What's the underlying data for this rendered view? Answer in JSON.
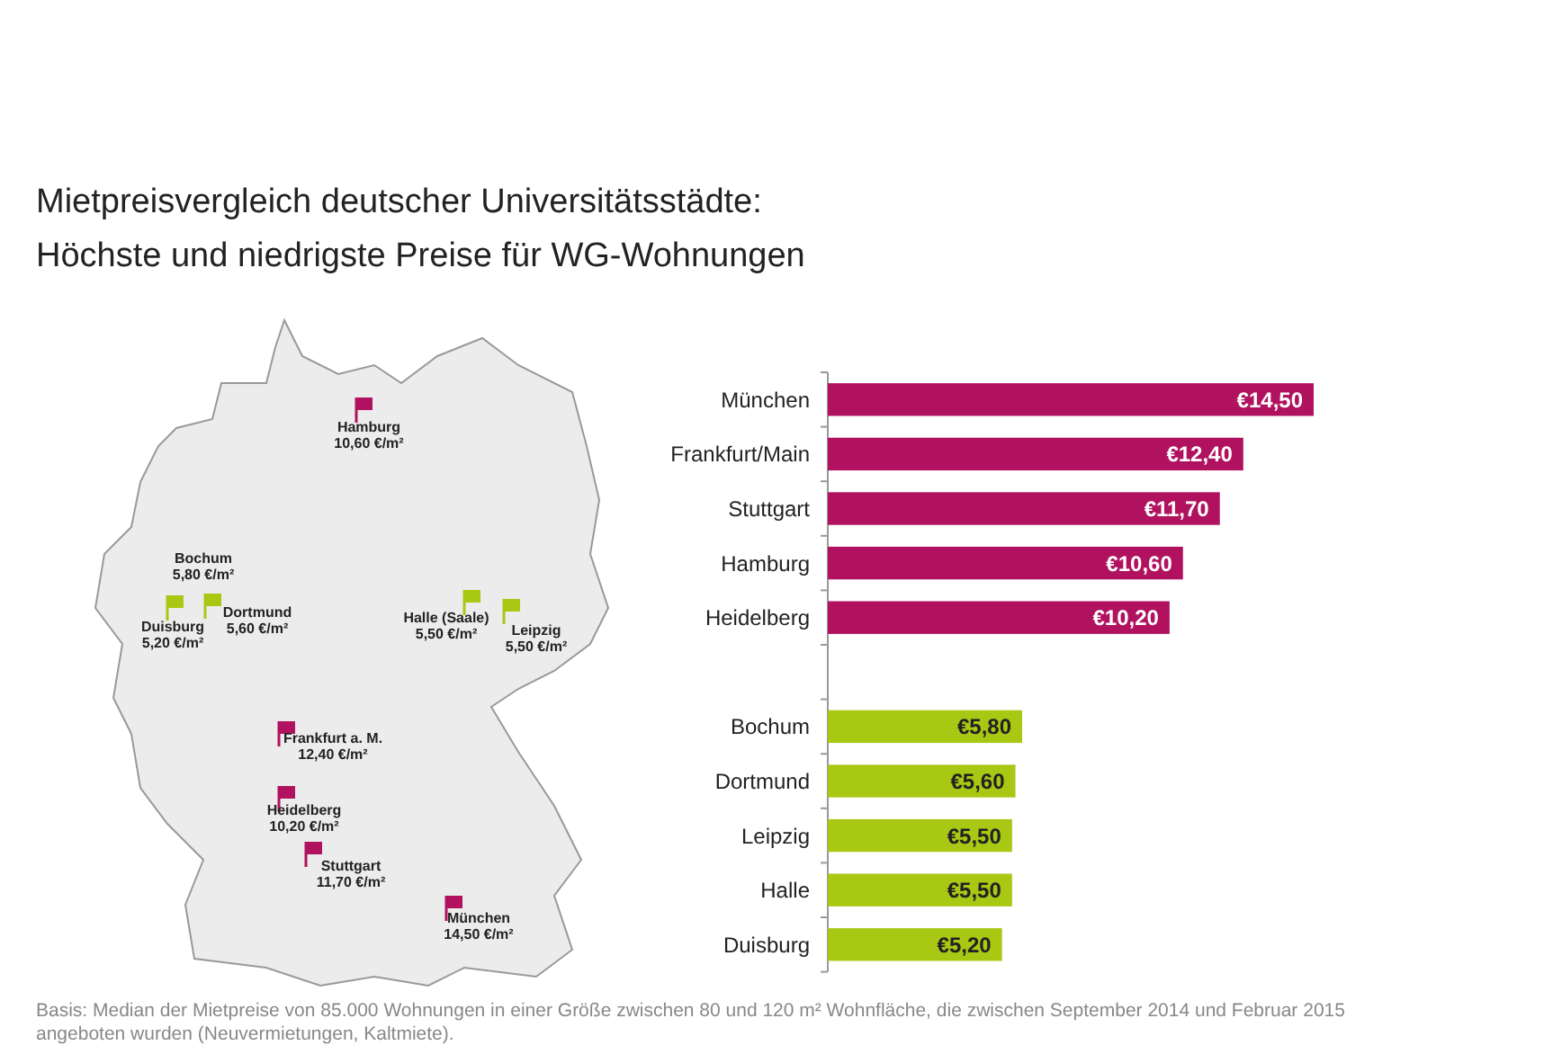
{
  "chart_data": {
    "type": "bar",
    "orientation": "horizontal",
    "title": "Mietpreisvergleich deutscher Universitätsstädte:\nHöchste und niedrigste Preise für WG-Wohnungen",
    "categories": [
      "München",
      "Frankfurt/Main",
      "Stuttgart",
      "Hamburg",
      "Heidelberg",
      null,
      "Bochum",
      "Dortmund",
      "Leipzig",
      "Halle",
      "Duisburg"
    ],
    "values": [
      14.5,
      12.4,
      11.7,
      10.6,
      10.2,
      null,
      5.8,
      5.6,
      5.5,
      5.5,
      5.2
    ],
    "colors": [
      "#b0125f",
      "#b0125f",
      "#b0125f",
      "#b0125f",
      "#b0125f",
      null,
      "#a8c814",
      "#a8c814",
      "#a8c814",
      "#a8c814",
      "#a8c814"
    ],
    "value_labels": [
      "€14,50",
      "€12,40",
      "€11,70",
      "€10,60",
      "€10,20",
      null,
      "€5,80",
      "€5,60",
      "€5,50",
      "€5,50",
      "€5,20"
    ],
    "annotations": [
      "Hamburg\n10,60 €/m²",
      "Bochum\n5,80 €/m²",
      "Dortmund\n5,60 €/m²",
      "Duisburg\n5,20 €/m²",
      "Halle (Saale)\n5,50 €/m²",
      "Leipzig\n5,50 €/m²",
      "Frankfurt a. M.\n12,40 €/m²",
      "Heidelberg\n10,20 €/m²",
      "Stuttgart\n11,70 €/m²",
      "München\n14,50 €/m²",
      "Basis: Median der Mietpreise von 85.000 Wohnungen in einer Größe zwischen 80 und 120 m² Wohnfläche, die zwischen September 2014 und Februar 2015 angeboten wurden (Neuvermietungen, Kaltmiete)."
    ]
  }
}
